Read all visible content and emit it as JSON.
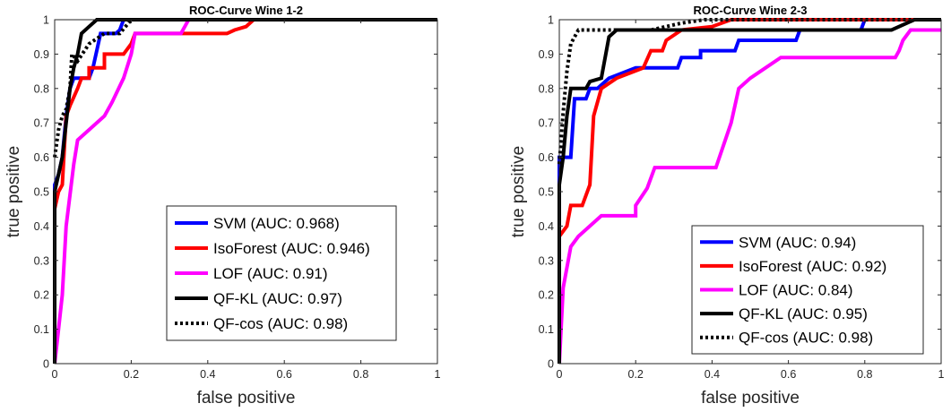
{
  "chart_data": [
    {
      "type": "line",
      "title": "ROC-Curve Wine 1-2",
      "xlabel": "false positive",
      "ylabel": "true positive",
      "xlim": [
        0,
        1
      ],
      "ylim": [
        0,
        1
      ],
      "xticks": [
        "0",
        "0.2",
        "0.4",
        "0.6",
        "0.8",
        "1"
      ],
      "yticks": [
        "0",
        "0.1",
        "0.2",
        "0.3",
        "0.4",
        "0.5",
        "0.6",
        "0.7",
        "0.8",
        "0.9",
        "1"
      ],
      "grid": false,
      "legend_position": "bottom-right",
      "series": [
        {
          "name": "SVM (AUC: 0.968)",
          "color": "#0000ff",
          "style": "solid",
          "points": [
            [
              0,
              0
            ],
            [
              0,
              0.52
            ],
            [
              0.01,
              0.55
            ],
            [
              0.02,
              0.6
            ],
            [
              0.03,
              0.72
            ],
            [
              0.04,
              0.8
            ],
            [
              0.05,
              0.83
            ],
            [
              0.07,
              0.83
            ],
            [
              0.09,
              0.83
            ],
            [
              0.1,
              0.86
            ],
            [
              0.12,
              0.96
            ],
            [
              0.16,
              0.96
            ],
            [
              0.17,
              0.97
            ],
            [
              0.18,
              1
            ],
            [
              1,
              1
            ]
          ]
        },
        {
          "name": "IsoForest (AUC: 0.946)",
          "color": "#ff0000",
          "style": "solid",
          "points": [
            [
              0,
              0
            ],
            [
              0,
              0.45
            ],
            [
              0.01,
              0.5
            ],
            [
              0.02,
              0.52
            ],
            [
              0.03,
              0.72
            ],
            [
              0.04,
              0.75
            ],
            [
              0.06,
              0.8
            ],
            [
              0.07,
              0.83
            ],
            [
              0.09,
              0.83
            ],
            [
              0.09,
              0.86
            ],
            [
              0.13,
              0.86
            ],
            [
              0.13,
              0.9
            ],
            [
              0.18,
              0.9
            ],
            [
              0.2,
              0.93
            ],
            [
              0.21,
              0.96
            ],
            [
              0.45,
              0.96
            ],
            [
              0.47,
              0.97
            ],
            [
              0.5,
              0.98
            ],
            [
              0.52,
              1
            ],
            [
              1,
              1
            ]
          ]
        },
        {
          "name": "LOF (AUC: 0.91)",
          "color": "#ff00ff",
          "style": "solid",
          "points": [
            [
              0,
              0
            ],
            [
              0.01,
              0.1
            ],
            [
              0.02,
              0.2
            ],
            [
              0.03,
              0.4
            ],
            [
              0.05,
              0.58
            ],
            [
              0.06,
              0.65
            ],
            [
              0.09,
              0.68
            ],
            [
              0.13,
              0.72
            ],
            [
              0.15,
              0.76
            ],
            [
              0.18,
              0.83
            ],
            [
              0.2,
              0.9
            ],
            [
              0.21,
              0.96
            ],
            [
              0.33,
              0.96
            ],
            [
              0.34,
              0.98
            ],
            [
              0.35,
              1
            ],
            [
              1,
              1
            ]
          ]
        },
        {
          "name": "QF-KL (AUC: 0.97)",
          "color": "#000000",
          "style": "solid",
          "points": [
            [
              0,
              0
            ],
            [
              0,
              0.5
            ],
            [
              0.01,
              0.55
            ],
            [
              0.02,
              0.6
            ],
            [
              0.03,
              0.7
            ],
            [
              0.04,
              0.8
            ],
            [
              0.05,
              0.86
            ],
            [
              0.06,
              0.9
            ],
            [
              0.07,
              0.96
            ],
            [
              0.09,
              0.98
            ],
            [
              0.11,
              1
            ],
            [
              1,
              1
            ]
          ]
        },
        {
          "name": "QF-cos (AUC: 0.98)",
          "color": "#000000",
          "style": "dotted",
          "points": [
            [
              0,
              0.6
            ],
            [
              0.01,
              0.68
            ],
            [
              0.02,
              0.72
            ],
            [
              0.03,
              0.74
            ],
            [
              0.04,
              0.8
            ],
            [
              0.045,
              0.9
            ],
            [
              0.06,
              0.88
            ],
            [
              0.09,
              0.93
            ],
            [
              0.13,
              0.96
            ],
            [
              0.17,
              0.96
            ],
            [
              0.2,
              1
            ],
            [
              1,
              1
            ]
          ]
        }
      ]
    },
    {
      "type": "line",
      "title": "ROC-Curve Wine 2-3",
      "xlabel": "false positive",
      "ylabel": "true positive",
      "xlim": [
        0,
        1
      ],
      "ylim": [
        0,
        1
      ],
      "xticks": [
        "0",
        "0.2",
        "0.4",
        "0.6",
        "0.8",
        "1"
      ],
      "yticks": [
        "0",
        "0.1",
        "0.2",
        "0.3",
        "0.4",
        "0.5",
        "0.6",
        "0.7",
        "0.8",
        "0.9",
        "1"
      ],
      "grid": false,
      "legend_position": "bottom-right",
      "series": [
        {
          "name": "SVM (AUC: 0.94)",
          "color": "#0000ff",
          "style": "solid",
          "points": [
            [
              0,
              0
            ],
            [
              0,
              0.6
            ],
            [
              0.03,
              0.6
            ],
            [
              0.04,
              0.77
            ],
            [
              0.07,
              0.77
            ],
            [
              0.08,
              0.8
            ],
            [
              0.1,
              0.8
            ],
            [
              0.13,
              0.83
            ],
            [
              0.2,
              0.86
            ],
            [
              0.31,
              0.86
            ],
            [
              0.32,
              0.89
            ],
            [
              0.37,
              0.89
            ],
            [
              0.37,
              0.91
            ],
            [
              0.46,
              0.91
            ],
            [
              0.47,
              0.94
            ],
            [
              0.62,
              0.94
            ],
            [
              0.63,
              0.97
            ],
            [
              0.79,
              0.97
            ],
            [
              0.8,
              1
            ],
            [
              1,
              1
            ]
          ]
        },
        {
          "name": "IsoForest (AUC: 0.92)",
          "color": "#ff0000",
          "style": "solid",
          "points": [
            [
              0,
              0
            ],
            [
              0,
              0.37
            ],
            [
              0.02,
              0.4
            ],
            [
              0.03,
              0.46
            ],
            [
              0.06,
              0.46
            ],
            [
              0.08,
              0.52
            ],
            [
              0.09,
              0.72
            ],
            [
              0.11,
              0.8
            ],
            [
              0.15,
              0.83
            ],
            [
              0.22,
              0.86
            ],
            [
              0.24,
              0.91
            ],
            [
              0.27,
              0.91
            ],
            [
              0.28,
              0.94
            ],
            [
              0.32,
              0.97
            ],
            [
              0.4,
              0.98
            ],
            [
              0.45,
              1
            ],
            [
              1,
              1
            ]
          ]
        },
        {
          "name": "LOF (AUC: 0.84)",
          "color": "#ff00ff",
          "style": "solid",
          "points": [
            [
              0,
              0
            ],
            [
              0.01,
              0.22
            ],
            [
              0.03,
              0.34
            ],
            [
              0.05,
              0.37
            ],
            [
              0.08,
              0.4
            ],
            [
              0.11,
              0.43
            ],
            [
              0.2,
              0.43
            ],
            [
              0.2,
              0.46
            ],
            [
              0.23,
              0.51
            ],
            [
              0.25,
              0.57
            ],
            [
              0.41,
              0.57
            ],
            [
              0.45,
              0.7
            ],
            [
              0.47,
              0.8
            ],
            [
              0.5,
              0.83
            ],
            [
              0.54,
              0.86
            ],
            [
              0.58,
              0.89
            ],
            [
              0.88,
              0.89
            ],
            [
              0.89,
              0.91
            ],
            [
              0.9,
              0.94
            ],
            [
              0.92,
              0.97
            ],
            [
              1,
              0.97
            ]
          ]
        },
        {
          "name": "QF-KL (AUC: 0.95)",
          "color": "#000000",
          "style": "solid",
          "points": [
            [
              0,
              0
            ],
            [
              0,
              0.52
            ],
            [
              0.01,
              0.6
            ],
            [
              0.02,
              0.72
            ],
            [
              0.03,
              0.8
            ],
            [
              0.07,
              0.8
            ],
            [
              0.08,
              0.82
            ],
            [
              0.11,
              0.83
            ],
            [
              0.13,
              0.95
            ],
            [
              0.15,
              0.97
            ],
            [
              0.85,
              0.97
            ],
            [
              0.87,
              0.97
            ],
            [
              0.93,
              1
            ],
            [
              1,
              1
            ]
          ]
        },
        {
          "name": "QF-cos (AUC: 0.98)",
          "color": "#000000",
          "style": "dotted",
          "points": [
            [
              0,
              0.58
            ],
            [
              0.01,
              0.73
            ],
            [
              0.02,
              0.85
            ],
            [
              0.03,
              0.93
            ],
            [
              0.05,
              0.97
            ],
            [
              0.24,
              0.97
            ],
            [
              0.32,
              0.99
            ],
            [
              0.38,
              1
            ],
            [
              1,
              1
            ]
          ]
        }
      ]
    }
  ]
}
